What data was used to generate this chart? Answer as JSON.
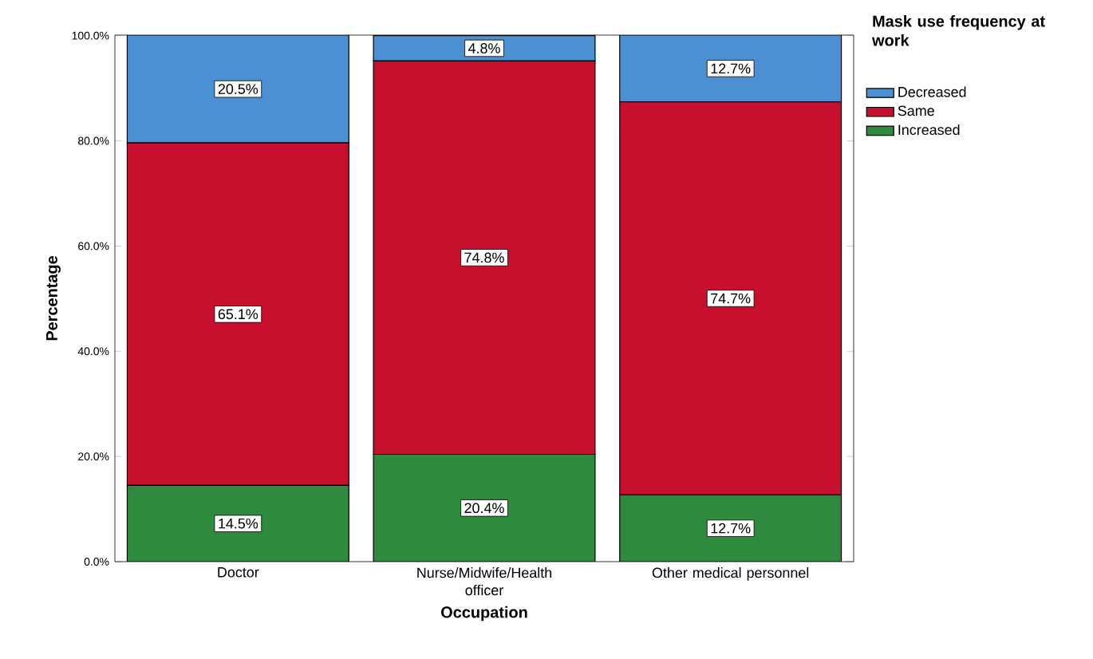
{
  "chart_data": {
    "type": "bar",
    "stacked": true,
    "xlabel": "Occupation",
    "ylabel": "Percentage",
    "legend_title": "Mask use frequency at work",
    "legend": "right",
    "categories": [
      "Doctor",
      "Nurse/Midwife/Health officer",
      "Other medical personnel"
    ],
    "series": [
      {
        "name": "Increased",
        "color": "#2e8a3c",
        "values": [
          14.5,
          20.4,
          12.7
        ],
        "value_labels": [
          "14.5%",
          "20.4%",
          "12.7%"
        ]
      },
      {
        "name": "Same",
        "color": "#c8102e",
        "values": [
          65.1,
          74.8,
          74.7
        ],
        "value_labels": [
          "65.1%",
          "74.8%",
          "74.7%"
        ]
      },
      {
        "name": "Decreased",
        "color": "#4a90d2",
        "values": [
          20.5,
          4.8,
          12.7
        ],
        "value_labels": [
          "20.5%",
          "4.8%",
          "12.7%"
        ]
      }
    ],
    "ylim": [
      0,
      100.1
    ],
    "yticks": [
      {
        "value": 0,
        "label": "0.0%"
      },
      {
        "value": 20,
        "label": "20.0%"
      },
      {
        "value": 40,
        "label": "40.0%"
      },
      {
        "value": 60,
        "label": "60.0%"
      },
      {
        "value": 80,
        "label": "80.0%"
      },
      {
        "value": 100,
        "label": "100.0%"
      }
    ]
  }
}
